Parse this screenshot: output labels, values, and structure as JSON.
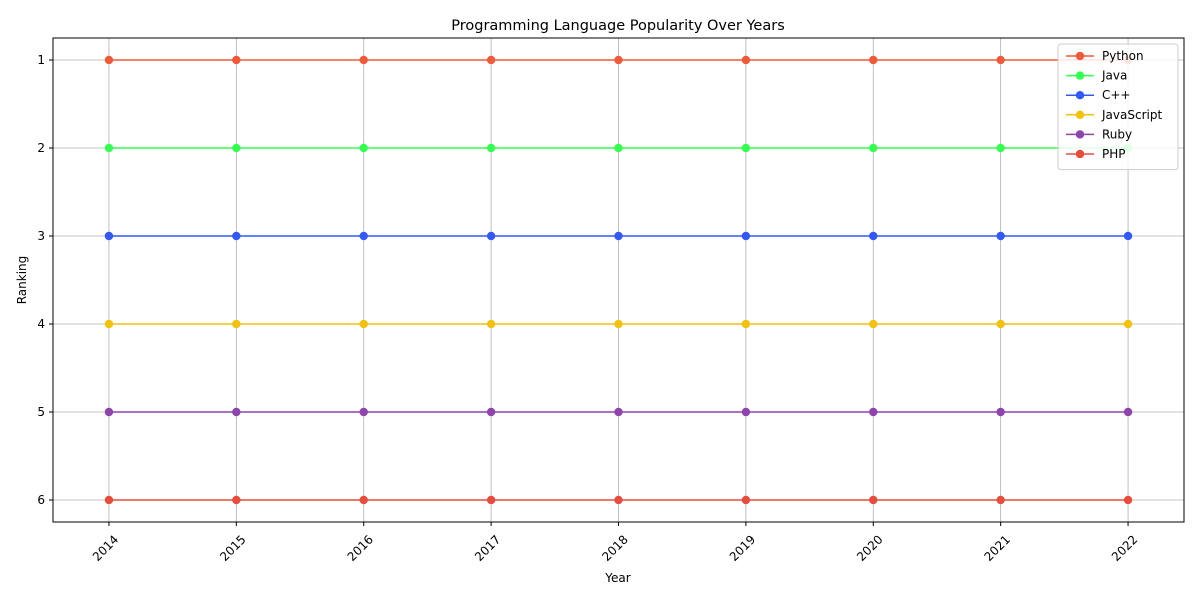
{
  "chart_data": {
    "type": "line",
    "title": "Programming Language Popularity Over Years",
    "xlabel": "Year",
    "ylabel": "Ranking",
    "x": [
      2014,
      2015,
      2016,
      2017,
      2018,
      2019,
      2020,
      2021,
      2022
    ],
    "y_ticks": [
      1,
      2,
      3,
      4,
      5,
      6
    ],
    "ylim": [
      6.25,
      0.75
    ],
    "y_inverted": true,
    "grid": true,
    "legend_position": "top-right",
    "series": [
      {
        "name": "Python",
        "color": "#f05a3a",
        "values": [
          1,
          1,
          1,
          1,
          1,
          1,
          1,
          1,
          1
        ]
      },
      {
        "name": "Java",
        "color": "#33ff4f",
        "values": [
          2,
          2,
          2,
          2,
          2,
          2,
          2,
          2,
          2
        ]
      },
      {
        "name": "C++",
        "color": "#3359f5",
        "values": [
          3,
          3,
          3,
          3,
          3,
          3,
          3,
          3,
          3
        ]
      },
      {
        "name": "JavaScript",
        "color": "#f2c20f",
        "values": [
          4,
          4,
          4,
          4,
          4,
          4,
          4,
          4,
          4
        ]
      },
      {
        "name": "Ruby",
        "color": "#8e44ad",
        "values": [
          5,
          5,
          5,
          5,
          5,
          5,
          5,
          5,
          5
        ]
      },
      {
        "name": "PHP",
        "color": "#e74c3c",
        "values": [
          6,
          6,
          6,
          6,
          6,
          6,
          6,
          6,
          6
        ]
      }
    ]
  }
}
